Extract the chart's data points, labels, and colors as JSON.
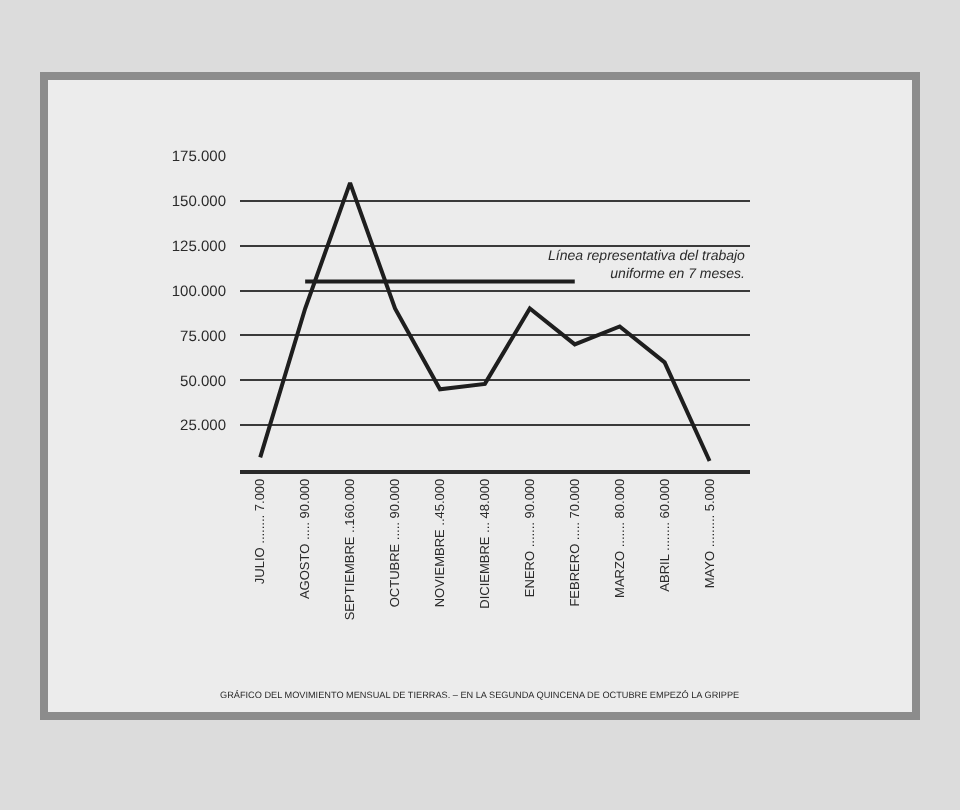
{
  "chart_data": {
    "type": "line",
    "categories": [
      "JULIO ........ 7.000",
      "AGOSTO ..... 90.000",
      "SEPTIEMBRE ..160.000",
      "OCTUBRE ..... 90.000",
      "NOVIEMBRE ..45.000",
      "DICIEMBRE ... 48.000",
      "ENERO ....... 90.000",
      "FEBRERO ..... 70.000",
      "MARZO ....... 80.000",
      "ABRIL ........ 60.000",
      "MAYO ......... 5.000"
    ],
    "series": [
      {
        "color": "#1e1e1e",
        "values": [
          7000,
          90000,
          160000,
          90000,
          45000,
          48000,
          90000,
          70000,
          80000,
          60000,
          5000
        ]
      },
      {
        "color": "#1e1e1e",
        "values": [
          null,
          105000,
          105000,
          105000,
          105000,
          105000,
          105000,
          105000,
          null,
          null,
          null
        ]
      }
    ],
    "ylim": [
      0,
      175000
    ],
    "yticks": [
      {
        "value": 25000,
        "label": "25.000"
      },
      {
        "value": 50000,
        "label": "50.000"
      },
      {
        "value": 75000,
        "label": "75.000"
      },
      {
        "value": 100000,
        "label": "100.000"
      },
      {
        "value": 125000,
        "label": "125.000"
      },
      {
        "value": 150000,
        "label": "150.000"
      },
      {
        "value": 175000,
        "label": "175.000"
      }
    ],
    "grid": "y",
    "marker": "none",
    "line_style": "solid",
    "annotations": [
      "Línea representativa del trabajo\nuniforme en 7 meses.",
      "GRÁFICO DEL MOVIMIENTO MENSUAL DE TIERRAS. – EN LA SEGUNDA QUINCENA DE OCTUBRE EMPEZÓ LA GRIPPE"
    ]
  }
}
